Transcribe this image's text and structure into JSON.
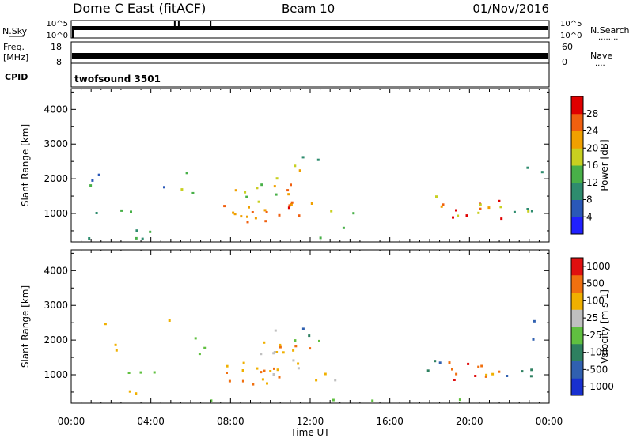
{
  "header": {
    "station": "Dome C East (fitACF)",
    "beam": "Beam 10",
    "date": "01/Nov/2016"
  },
  "strip_labels": {
    "nsky": "N.Sky",
    "nsky_top": "10^5",
    "nsky_bot": "10^0",
    "freq_line1": "Freq.",
    "freq_line2": "[MHz]",
    "freq_top": "18",
    "freq_bot": "8",
    "nsearch": "N.Search",
    "nsearch_top": "10^5",
    "nsearch_bot": "10^0",
    "nave": "Nave",
    "nave_top": "60",
    "nave_bot": "0",
    "cpid": "CPID",
    "cpid_value": "twofsound 3501",
    "dots1": "........",
    "dots2": "...."
  },
  "chart_data": [
    {
      "type": "heatmap",
      "title": "Power",
      "ylabel": "Slant Range [km]",
      "xlabel": "Time UT",
      "x_ticks": [
        "00:00",
        "04:00",
        "08:00",
        "12:00",
        "16:00",
        "20:00",
        "00:00"
      ],
      "xlim_hours": [
        0,
        24
      ],
      "y_ticks": [
        1000,
        2000,
        3000,
        4000
      ],
      "ylim": [
        180,
        4600
      ],
      "colorbar": {
        "label": "Power [dB]",
        "ticks": [
          "4",
          "8",
          "12",
          "16",
          "20",
          "24",
          "28"
        ],
        "colors": [
          "#2020ff",
          "#2a58b8",
          "#2e8c6e",
          "#48b048",
          "#c8d020",
          "#f0a000",
          "#f06010",
          "#e00000"
        ]
      }
    },
    {
      "type": "heatmap",
      "title": "Velocity",
      "ylabel": "Slant Range [km]",
      "xlabel": "Time UT",
      "x_ticks": [
        "00:00",
        "04:00",
        "08:00",
        "12:00",
        "16:00",
        "20:00",
        "00:00"
      ],
      "xlim_hours": [
        0,
        24
      ],
      "y_ticks": [
        1000,
        2000,
        3000,
        4000
      ],
      "ylim": [
        180,
        4600
      ],
      "colorbar": {
        "label": "Velocity [m s-1]",
        "ticks": [
          "1000",
          "500",
          "100",
          "25",
          "-25",
          "-100",
          "-500",
          "-1000"
        ],
        "colors": [
          "#1830d0",
          "#3060b0",
          "#2e8060",
          "#60c040",
          "#c0c0c0",
          "#f0b000",
          "#f07010",
          "#e01010"
        ]
      }
    }
  ],
  "patches": [
    {
      "t0": 0.1,
      "t1": 4.2,
      "r0": 1030,
      "r1": 1130,
      "p": [
        0.35,
        0.45
      ],
      "v": [
        0.45,
        0.5
      ],
      "d": 0.7
    },
    {
      "t0": 1.0,
      "t1": 4.0,
      "r0": 480,
      "r1": 600,
      "p": [
        0.2,
        0.4
      ],
      "v": [
        0.6,
        0.7
      ],
      "d": 0.5
    },
    {
      "t0": 0.3,
      "t1": 2.5,
      "r0": 1500,
      "r1": 2700,
      "p": [
        0.2,
        0.5
      ],
      "v": [
        0.4,
        0.7
      ],
      "d": 0.12
    },
    {
      "t0": 3.0,
      "t1": 6.8,
      "r0": 1600,
      "r1": 2600,
      "p": [
        0.2,
        0.55
      ],
      "v": [
        0.4,
        0.75
      ],
      "d": 0.12
    },
    {
      "t0": 7.5,
      "t1": 10.5,
      "r0": 750,
      "r1": 1300,
      "p": [
        0.55,
        0.95
      ],
      "v": [
        0.65,
        0.85
      ],
      "d": 0.85
    },
    {
      "t0": 8.0,
      "t1": 11.5,
      "r0": 1300,
      "r1": 2000,
      "p": [
        0.4,
        0.8
      ],
      "v": [
        0.5,
        0.8
      ],
      "d": 0.35
    },
    {
      "t0": 10.0,
      "t1": 12.3,
      "r0": 900,
      "r1": 1900,
      "p": [
        0.45,
        0.9
      ],
      "v": [
        0.6,
        0.8
      ],
      "d": 0.5
    },
    {
      "t0": 10.0,
      "t1": 12.5,
      "r0": 1900,
      "r1": 2800,
      "p": [
        0.3,
        0.7
      ],
      "v": [
        0.2,
        0.6
      ],
      "d": 0.25
    },
    {
      "t0": 12.2,
      "t1": 14.2,
      "r0": 600,
      "r1": 1100,
      "p": [
        0.25,
        0.55
      ],
      "v": [
        0.6,
        0.75
      ],
      "d": 0.3
    },
    {
      "t0": 17.8,
      "t1": 18.8,
      "r0": 1000,
      "r1": 1600,
      "p": [
        0.55,
        0.9
      ],
      "v": [
        0.15,
        0.4
      ],
      "d": 0.6
    },
    {
      "t0": 18.8,
      "t1": 21.8,
      "r0": 850,
      "r1": 1450,
      "p": [
        0.5,
        0.95
      ],
      "v": [
        0.7,
        0.95
      ],
      "d": 0.75
    },
    {
      "t0": 21.8,
      "t1": 23.5,
      "r0": 900,
      "r1": 1500,
      "p": [
        0.3,
        0.6
      ],
      "v": [
        0.1,
        0.35
      ],
      "d": 0.4
    },
    {
      "t0": 22.8,
      "t1": 23.7,
      "r0": 1900,
      "r1": 2600,
      "p": [
        0.3,
        0.55
      ],
      "v": [
        0.1,
        0.4
      ],
      "d": 0.4
    },
    {
      "t0": 0.0,
      "t1": 24.0,
      "r0": 200,
      "r1": 330,
      "p": [
        0.3,
        0.5
      ],
      "v": [
        0.35,
        0.5
      ],
      "d": 0.25
    }
  ]
}
